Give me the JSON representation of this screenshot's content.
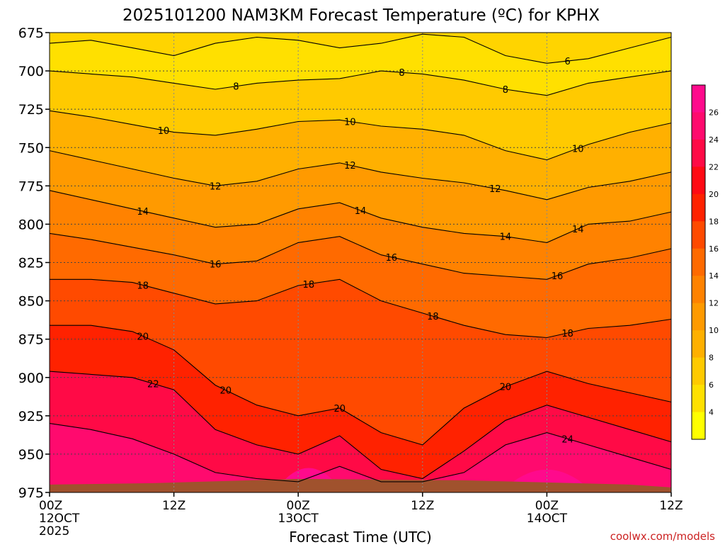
{
  "chart_data": {
    "type": "contour",
    "title": "2025101200 NAM3KM Forecast Temperature (ºC) for KPHX",
    "xlabel": "Forecast Time (UTC)",
    "ylabel": "",
    "credit": "coolwx.com/models",
    "x_hours": [
      0,
      12,
      24,
      36,
      48,
      60
    ],
    "x_ticks": [
      {
        "hour": 0,
        "label": "00Z",
        "date": "12OCT",
        "year": "2025"
      },
      {
        "hour": 12,
        "label": "12Z",
        "date": "",
        "year": ""
      },
      {
        "hour": 24,
        "label": "00Z",
        "date": "13OCT",
        "year": ""
      },
      {
        "hour": 36,
        "label": "12Z",
        "date": "",
        "year": ""
      },
      {
        "hour": 48,
        "label": "00Z",
        "date": "14OCT",
        "year": ""
      },
      {
        "hour": 60,
        "label": "12Z",
        "date": "",
        "year": ""
      }
    ],
    "y_levels_hpa": [
      675,
      700,
      725,
      750,
      775,
      800,
      825,
      850,
      875,
      900,
      925,
      950,
      975
    ],
    "ylim": [
      675,
      975
    ],
    "xlim": [
      0,
      60
    ],
    "levels": [
      6,
      8,
      10,
      12,
      14,
      16,
      18,
      20,
      22,
      24
    ],
    "ground_level_hpa": 968,
    "colorbar": {
      "ticks": [
        4,
        6,
        8,
        10,
        12,
        14,
        16,
        18,
        20,
        22,
        24,
        26
      ],
      "colors": [
        "#ffff00",
        "#ffe000",
        "#ffca00",
        "#ffb000",
        "#ff9a00",
        "#ff8200",
        "#ff6a00",
        "#ff4a00",
        "#ff2200",
        "#ff0a14",
        "#ff0a46",
        "#ff0a6e",
        "#ff0a8c"
      ]
    },
    "band_colors": {
      "6": "#ffe000",
      "8": "#ffca00",
      "10": "#ffb000",
      "12": "#ff9a00",
      "14": "#ff8200",
      "16": "#ff6a00",
      "18": "#ff4a00",
      "20": "#ff2200",
      "22": "#ff0a46",
      "24": "#ff0a6e",
      "26": "#ff0a8c",
      "ground": "#a0522d"
    },
    "contours": [
      {
        "level": 6,
        "pressure": [
          682,
          680,
          685,
          690,
          682,
          678,
          680,
          685,
          682,
          676,
          678,
          690,
          695,
          692,
          685,
          678
        ],
        "labels": [
          {
            "hour": 50,
            "text": "6"
          }
        ]
      },
      {
        "level": 8,
        "pressure": [
          700,
          702,
          704,
          708,
          712,
          708,
          706,
          705,
          700,
          702,
          706,
          712,
          716,
          708,
          704,
          700
        ],
        "labels": [
          {
            "hour": 18,
            "text": "8"
          },
          {
            "hour": 34,
            "text": "8"
          },
          {
            "hour": 44,
            "text": "8"
          }
        ]
      },
      {
        "level": 10,
        "pressure": [
          726,
          730,
          735,
          740,
          742,
          738,
          733,
          732,
          736,
          738,
          742,
          752,
          758,
          748,
          740,
          734
        ],
        "labels": [
          {
            "hour": 11,
            "text": "10"
          },
          {
            "hour": 29,
            "text": "10"
          },
          {
            "hour": 51,
            "text": "10"
          }
        ]
      },
      {
        "level": 12,
        "pressure": [
          752,
          758,
          764,
          770,
          775,
          772,
          764,
          760,
          766,
          770,
          773,
          778,
          784,
          776,
          772,
          766
        ],
        "labels": [
          {
            "hour": 16,
            "text": "12"
          },
          {
            "hour": 29,
            "text": "12"
          },
          {
            "hour": 43,
            "text": "12"
          }
        ]
      },
      {
        "level": 14,
        "pressure": [
          778,
          784,
          790,
          796,
          802,
          800,
          790,
          786,
          796,
          802,
          806,
          808,
          812,
          800,
          798,
          792
        ],
        "labels": [
          {
            "hour": 9,
            "text": "14"
          },
          {
            "hour": 30,
            "text": "14"
          },
          {
            "hour": 44,
            "text": "14"
          },
          {
            "hour": 51,
            "text": "14"
          }
        ]
      },
      {
        "level": 16,
        "pressure": [
          806,
          810,
          815,
          820,
          826,
          824,
          812,
          808,
          820,
          826,
          832,
          834,
          836,
          826,
          822,
          816
        ],
        "labels": [
          {
            "hour": 16,
            "text": "16"
          },
          {
            "hour": 33,
            "text": "16"
          },
          {
            "hour": 49,
            "text": "16"
          }
        ]
      },
      {
        "level": 18,
        "pressure": [
          836,
          836,
          838,
          845,
          852,
          850,
          840,
          836,
          850,
          858,
          866,
          872,
          874,
          868,
          866,
          862
        ],
        "labels": [
          {
            "hour": 9,
            "text": "18"
          },
          {
            "hour": 25,
            "text": "18"
          },
          {
            "hour": 37,
            "text": "18"
          },
          {
            "hour": 50,
            "text": "18"
          }
        ]
      },
      {
        "level": 20,
        "pressure": [
          866,
          866,
          870,
          882,
          905,
          918,
          925,
          920,
          936,
          944,
          920,
          906,
          896,
          904,
          910,
          916
        ],
        "labels": [
          {
            "hour": 9,
            "text": "20"
          },
          {
            "hour": 17,
            "text": "20"
          },
          {
            "hour": 28,
            "text": "20"
          },
          {
            "hour": 44,
            "text": "20"
          }
        ]
      },
      {
        "level": 22,
        "pressure": [
          896,
          898,
          900,
          908,
          934,
          944,
          950,
          938,
          960,
          966,
          948,
          928,
          918,
          926,
          934,
          942
        ],
        "labels": [
          {
            "hour": 10,
            "text": "22"
          }
        ]
      },
      {
        "level": 24,
        "pressure": [
          930,
          934,
          940,
          950,
          962,
          966,
          968,
          958,
          968,
          968,
          962,
          944,
          936,
          944,
          952,
          960
        ],
        "labels": [
          {
            "hour": 50,
            "text": "24"
          }
        ]
      }
    ]
  }
}
